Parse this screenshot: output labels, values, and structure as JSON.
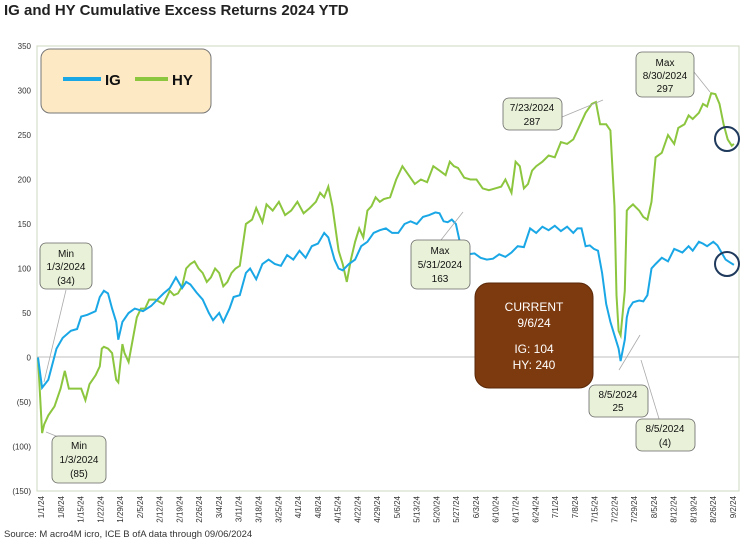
{
  "title": "IG and HY Cumulative Excess Returns 2024 YTD",
  "footer": "Source: M acro4M icro, ICE B ofA     data through 09/06/2024",
  "colors": {
    "ig": "#1aa7e6",
    "hy": "#8cc63f",
    "plot_bg": "#ffffff",
    "legend_bg": "#fde9c4",
    "current_bg": "#7e3a0f",
    "annotation_bg": "#e9f2d8",
    "circle": "#1f3a5c"
  },
  "legend": {
    "ig": "IG",
    "hy": "HY"
  },
  "current_box": {
    "title": "CURRENT",
    "date": "9/6/24",
    "ig": "IG:  104",
    "hy": "HY:  240"
  },
  "annotations": {
    "ig_min": [
      "Min",
      "1/3/2024",
      "(34)"
    ],
    "hy_min": [
      "Min",
      "1/3/2024",
      "(85)"
    ],
    "ig_max": [
      "Max",
      "5/31/2024",
      "163"
    ],
    "hy_jul": [
      "7/23/2024",
      "287"
    ],
    "hy_max": [
      "Max",
      "8/30/2024",
      "297"
    ],
    "hy_aug": [
      "8/5/2024",
      "25"
    ],
    "ig_aug": [
      "8/5/2024",
      "(4)"
    ]
  },
  "chart_data": {
    "type": "line",
    "title": "IG and HY Cumulative Excess Returns 2024 YTD",
    "ylim": [
      -150,
      350
    ],
    "y_ticks": [
      -150,
      -100,
      -50,
      0,
      50,
      100,
      150,
      200,
      250,
      300,
      350
    ],
    "y_tick_labels": [
      "(150)",
      "(100)",
      "(50)",
      "0",
      "50",
      "100",
      "150",
      "200",
      "250",
      "300",
      "350"
    ],
    "x_tick_labels": [
      "1/1/24",
      "1/8/24",
      "1/15/24",
      "1/22/24",
      "1/29/24",
      "2/5/24",
      "2/12/24",
      "2/19/24",
      "2/26/24",
      "3/4/24",
      "3/11/24",
      "3/18/24",
      "3/25/24",
      "4/1/24",
      "4/8/24",
      "4/15/24",
      "4/22/24",
      "4/29/24",
      "5/6/24",
      "5/13/24",
      "5/20/24",
      "5/27/24",
      "6/3/24",
      "6/10/24",
      "6/17/24",
      "6/24/24",
      "7/1/24",
      "7/8/24",
      "7/15/24",
      "7/22/24",
      "7/29/24",
      "8/5/24",
      "8/12/24",
      "8/19/24",
      "8/26/24",
      "9/2/24"
    ],
    "grid": false,
    "legend": "top-left",
    "series": [
      {
        "name": "IG",
        "points": [
          [
            0,
            0
          ],
          [
            2,
            -34
          ],
          [
            5,
            -25
          ],
          [
            9,
            10
          ],
          [
            12,
            22
          ],
          [
            16,
            30
          ],
          [
            19,
            32
          ],
          [
            21,
            46
          ],
          [
            24,
            48
          ],
          [
            28,
            52
          ],
          [
            30,
            68
          ],
          [
            32,
            75
          ],
          [
            34,
            72
          ],
          [
            36,
            55
          ],
          [
            38,
            40
          ],
          [
            39,
            20
          ],
          [
            41,
            40
          ],
          [
            44,
            50
          ],
          [
            47,
            55
          ],
          [
            51,
            52
          ],
          [
            55,
            58
          ],
          [
            58,
            65
          ],
          [
            61,
            72
          ],
          [
            64,
            78
          ],
          [
            67,
            90
          ],
          [
            70,
            78
          ],
          [
            72,
            85
          ],
          [
            74,
            82
          ],
          [
            77,
            73
          ],
          [
            80,
            65
          ],
          [
            83,
            50
          ],
          [
            85,
            42
          ],
          [
            88,
            50
          ],
          [
            90,
            40
          ],
          [
            93,
            55
          ],
          [
            95,
            68
          ],
          [
            98,
            70
          ],
          [
            101,
            95
          ],
          [
            103,
            100
          ],
          [
            106,
            88
          ],
          [
            109,
            105
          ],
          [
            112,
            110
          ],
          [
            115,
            105
          ],
          [
            118,
            103
          ],
          [
            121,
            115
          ],
          [
            124,
            110
          ],
          [
            127,
            120
          ],
          [
            130,
            112
          ],
          [
            133,
            125
          ],
          [
            136,
            128
          ],
          [
            139,
            140
          ],
          [
            141,
            135
          ],
          [
            144,
            110
          ],
          [
            146,
            100
          ],
          [
            148,
            98
          ],
          [
            151,
            105
          ],
          [
            154,
            110
          ],
          [
            157,
            125
          ],
          [
            160,
            130
          ],
          [
            163,
            140
          ],
          [
            166,
            143
          ],
          [
            169,
            145
          ],
          [
            172,
            140
          ],
          [
            175,
            140
          ],
          [
            178,
            150
          ],
          [
            181,
            153
          ],
          [
            184,
            150
          ],
          [
            187,
            158
          ],
          [
            190,
            160
          ],
          [
            193,
            163
          ],
          [
            195,
            162
          ],
          [
            197,
            153
          ],
          [
            199,
            152
          ],
          [
            201,
            155
          ],
          [
            203,
            150
          ],
          [
            206,
            118
          ],
          [
            209,
            116
          ],
          [
            212,
            117
          ],
          [
            215,
            112
          ],
          [
            218,
            110
          ],
          [
            221,
            111
          ],
          [
            224,
            116
          ],
          [
            227,
            113
          ],
          [
            230,
            118
          ],
          [
            233,
            125
          ],
          [
            236,
            124
          ],
          [
            239,
            145
          ],
          [
            242,
            140
          ],
          [
            245,
            147
          ],
          [
            248,
            143
          ],
          [
            251,
            148
          ],
          [
            254,
            142
          ],
          [
            257,
            147
          ],
          [
            260,
            140
          ],
          [
            262,
            145
          ],
          [
            264,
            145
          ],
          [
            266,
            125
          ],
          [
            268,
            126
          ],
          [
            270,
            122
          ],
          [
            272,
            120
          ],
          [
            274,
            95
          ],
          [
            276,
            60
          ],
          [
            278,
            40
          ],
          [
            280,
            25
          ],
          [
            282,
            10
          ],
          [
            283,
            -4
          ],
          [
            285,
            20
          ],
          [
            286,
            45
          ],
          [
            287,
            55
          ],
          [
            289,
            62
          ],
          [
            292,
            64
          ],
          [
            294,
            63
          ],
          [
            296,
            70
          ],
          [
            298,
            100
          ],
          [
            300,
            105
          ],
          [
            303,
            112
          ],
          [
            306,
            108
          ],
          [
            309,
            122
          ],
          [
            311,
            120
          ],
          [
            313,
            118
          ],
          [
            316,
            125
          ],
          [
            318,
            120
          ],
          [
            321,
            130
          ],
          [
            323,
            128
          ],
          [
            325,
            125
          ],
          [
            328,
            130
          ],
          [
            330,
            126
          ],
          [
            332,
            118
          ],
          [
            334,
            110
          ],
          [
            336,
            107
          ],
          [
            338,
            104
          ]
        ]
      },
      {
        "name": "HY",
        "points": [
          [
            0,
            0
          ],
          [
            2,
            -85
          ],
          [
            3,
            -75
          ],
          [
            5,
            -65
          ],
          [
            8,
            -55
          ],
          [
            11,
            -35
          ],
          [
            13,
            -15
          ],
          [
            15,
            -35
          ],
          [
            19,
            -35
          ],
          [
            21,
            -35
          ],
          [
            23,
            -48
          ],
          [
            25,
            -30
          ],
          [
            28,
            -20
          ],
          [
            30,
            -10
          ],
          [
            31,
            10
          ],
          [
            32,
            12
          ],
          [
            34,
            10
          ],
          [
            36,
            5
          ],
          [
            38,
            -25
          ],
          [
            39,
            -28
          ],
          [
            41,
            15
          ],
          [
            42,
            5
          ],
          [
            44,
            -5
          ],
          [
            46,
            20
          ],
          [
            48,
            45
          ],
          [
            50,
            55
          ],
          [
            52,
            55
          ],
          [
            54,
            65
          ],
          [
            57,
            65
          ],
          [
            61,
            60
          ],
          [
            64,
            75
          ],
          [
            66,
            70
          ],
          [
            68,
            72
          ],
          [
            70,
            80
          ],
          [
            72,
            100
          ],
          [
            74,
            105
          ],
          [
            76,
            108
          ],
          [
            78,
            100
          ],
          [
            80,
            95
          ],
          [
            82,
            85
          ],
          [
            84,
            90
          ],
          [
            86,
            100
          ],
          [
            88,
            95
          ],
          [
            90,
            80
          ],
          [
            92,
            85
          ],
          [
            94,
            95
          ],
          [
            96,
            100
          ],
          [
            98,
            103
          ],
          [
            101,
            150
          ],
          [
            104,
            155
          ],
          [
            106,
            168
          ],
          [
            109,
            152
          ],
          [
            111,
            172
          ],
          [
            114,
            165
          ],
          [
            117,
            175
          ],
          [
            120,
            160
          ],
          [
            123,
            165
          ],
          [
            126,
            175
          ],
          [
            129,
            162
          ],
          [
            132,
            168
          ],
          [
            135,
            175
          ],
          [
            137,
            185
          ],
          [
            139,
            180
          ],
          [
            141,
            192
          ],
          [
            143,
            170
          ],
          [
            146,
            120
          ],
          [
            148,
            105
          ],
          [
            150,
            85
          ],
          [
            152,
            110
          ],
          [
            154,
            130
          ],
          [
            156,
            145
          ],
          [
            158,
            135
          ],
          [
            160,
            165
          ],
          [
            162,
            170
          ],
          [
            164,
            180
          ],
          [
            166,
            175
          ],
          [
            168,
            178
          ],
          [
            171,
            180
          ],
          [
            174,
            200
          ],
          [
            177,
            215
          ],
          [
            180,
            205
          ],
          [
            183,
            195
          ],
          [
            186,
            200
          ],
          [
            189,
            197
          ],
          [
            192,
            215
          ],
          [
            195,
            210
          ],
          [
            198,
            205
          ],
          [
            200,
            220
          ],
          [
            202,
            215
          ],
          [
            204,
            213
          ],
          [
            207,
            202
          ],
          [
            210,
            200
          ],
          [
            213,
            200
          ],
          [
            216,
            190
          ],
          [
            219,
            188
          ],
          [
            222,
            190
          ],
          [
            225,
            192
          ],
          [
            227,
            200
          ],
          [
            230,
            185
          ],
          [
            232,
            220
          ],
          [
            234,
            215
          ],
          [
            236,
            190
          ],
          [
            238,
            195
          ],
          [
            240,
            210
          ],
          [
            242,
            215
          ],
          [
            245,
            220
          ],
          [
            248,
            227
          ],
          [
            251,
            225
          ],
          [
            254,
            242
          ],
          [
            257,
            240
          ],
          [
            260,
            245
          ],
          [
            263,
            260
          ],
          [
            266,
            275
          ],
          [
            269,
            285
          ],
          [
            271,
            287
          ],
          [
            273,
            262
          ],
          [
            276,
            262
          ],
          [
            278,
            255
          ],
          [
            280,
            170
          ],
          [
            281,
            70
          ],
          [
            282,
            30
          ],
          [
            283,
            25
          ],
          [
            285,
            75
          ],
          [
            286,
            165
          ],
          [
            287,
            168
          ],
          [
            289,
            172
          ],
          [
            292,
            165
          ],
          [
            294,
            158
          ],
          [
            296,
            155
          ],
          [
            298,
            175
          ],
          [
            300,
            225
          ],
          [
            303,
            230
          ],
          [
            306,
            250
          ],
          [
            309,
            240
          ],
          [
            311,
            258
          ],
          [
            314,
            262
          ],
          [
            316,
            272
          ],
          [
            318,
            268
          ],
          [
            321,
            275
          ],
          [
            323,
            285
          ],
          [
            325,
            282
          ],
          [
            327,
            297
          ],
          [
            329,
            296
          ],
          [
            331,
            285
          ],
          [
            333,
            262
          ],
          [
            335,
            245
          ],
          [
            337,
            238
          ],
          [
            338,
            240
          ]
        ]
      }
    ]
  }
}
